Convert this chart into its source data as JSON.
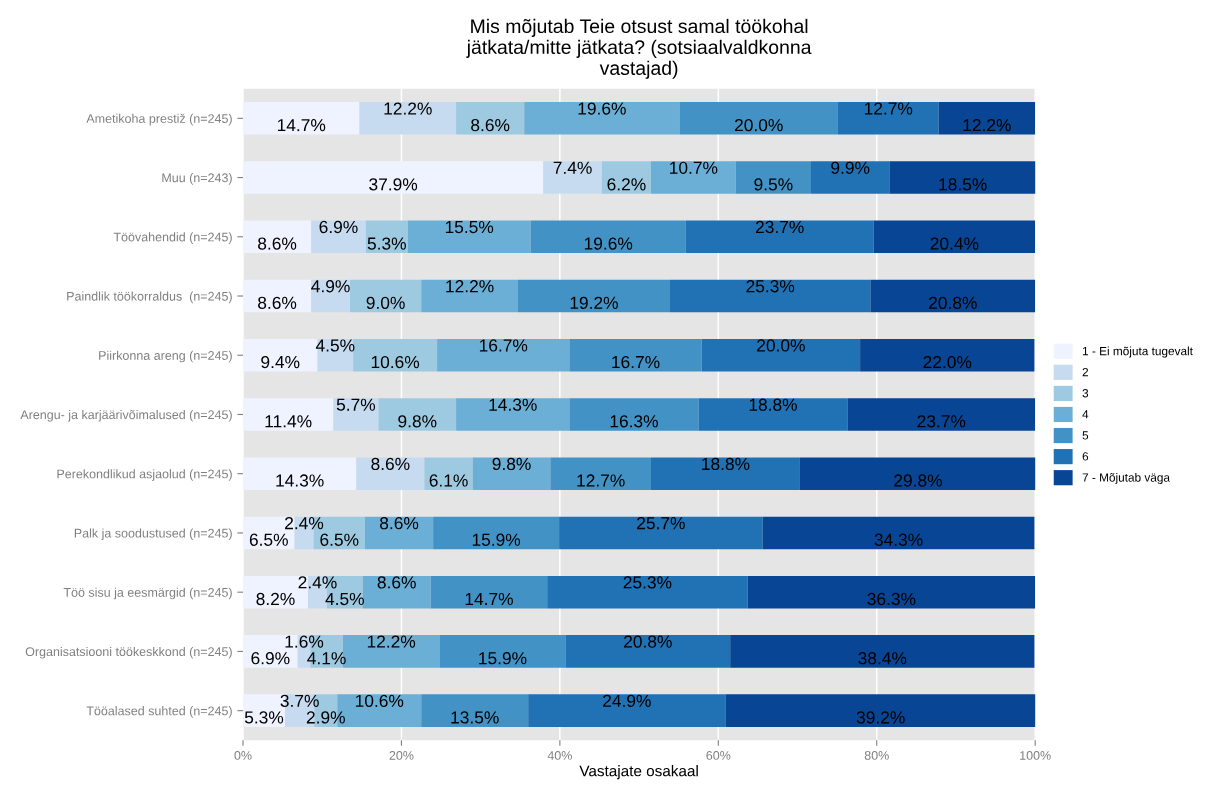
{
  "chart_data": {
    "type": "bar",
    "orientation": "horizontal",
    "stacked": true,
    "title": "Mis mõjutab Teie otsust samal töökohal\njätkata/mitte jätkata? (sotsiaalvaldkonna\nvastajad)",
    "xlabel": "Vastajate osakaal",
    "categories": [
      "Ametikoha prestiž (n=245)",
      "Muu (n=243)",
      "Töövahendid (n=245)",
      "Paindlik töökorraldus  (n=245)",
      "Piirkonna areng (n=245)",
      "Arengu- ja karjäärivõimalused (n=245)",
      "Perekondlikud asjaolud (n=245)",
      "Palk ja soodustused (n=245)",
      "Töö sisu ja eesmärgid (n=245)",
      "Organisatsiooni töökeskkond (n=245)",
      "Tööalased suhted (n=245)"
    ],
    "series": [
      {
        "name": "1 - Ei mõjuta tugevalt",
        "color": "#eff3ff",
        "values": [
          14.7,
          37.9,
          8.6,
          8.6,
          9.4,
          11.4,
          14.3,
          6.5,
          8.2,
          6.9,
          5.3
        ],
        "value_labels": [
          "14.7%",
          "37.9%",
          "8.6%",
          "8.6%",
          "9.4%",
          "11.4%",
          "14.3%",
          "6.5%",
          "8.2%",
          "6.9%",
          "5.3%"
        ]
      },
      {
        "name": "2",
        "color": "#c6dbef",
        "values": [
          12.2,
          7.4,
          6.9,
          4.9,
          4.5,
          5.7,
          8.6,
          2.4,
          2.4,
          1.6,
          3.7
        ],
        "value_labels": [
          "12.2%",
          "7.4%",
          "6.9%",
          "4.9%",
          "4.5%",
          "5.7%",
          "8.6%",
          "2.4%",
          "2.4%",
          "1.6%",
          "3.7%"
        ]
      },
      {
        "name": "3",
        "color": "#9ecae1",
        "values": [
          8.6,
          6.2,
          5.3,
          9.0,
          10.6,
          9.8,
          6.1,
          6.5,
          4.5,
          4.1,
          2.9
        ],
        "value_labels": [
          "8.6%",
          "6.2%",
          "5.3%",
          "9.0%",
          "10.6%",
          "9.8%",
          "6.1%",
          "6.5%",
          "4.5%",
          "4.1%",
          "2.9%"
        ]
      },
      {
        "name": "4",
        "color": "#6baed6",
        "values": [
          19.6,
          10.7,
          15.5,
          12.2,
          16.7,
          14.3,
          9.8,
          8.6,
          8.6,
          12.2,
          10.6
        ],
        "value_labels": [
          "19.6%",
          "10.7%",
          "15.5%",
          "12.2%",
          "16.7%",
          "14.3%",
          "9.8%",
          "8.6%",
          "8.6%",
          "12.2%",
          "10.6%"
        ]
      },
      {
        "name": "5",
        "color": "#4292c6",
        "values": [
          20.0,
          9.5,
          19.6,
          19.2,
          16.7,
          16.3,
          12.7,
          15.9,
          14.7,
          15.9,
          13.5
        ],
        "value_labels": [
          "20.0%",
          "9.5%",
          "19.6%",
          "19.2%",
          "16.7%",
          "16.3%",
          "12.7%",
          "15.9%",
          "14.7%",
          "15.9%",
          "13.5%"
        ]
      },
      {
        "name": "6",
        "color": "#2171b5",
        "values": [
          12.7,
          9.9,
          23.7,
          25.3,
          20.0,
          18.8,
          18.8,
          25.7,
          25.3,
          20.8,
          24.9
        ],
        "value_labels": [
          "12.7%",
          "9.9%",
          "23.7%",
          "25.3%",
          "20.0%",
          "18.8%",
          "18.8%",
          "25.7%",
          "25.3%",
          "20.8%",
          "24.9%"
        ]
      },
      {
        "name": "7 - Mõjutab väga",
        "color": "#084594",
        "values": [
          12.2,
          18.5,
          20.4,
          20.8,
          22.0,
          23.7,
          29.8,
          34.3,
          36.3,
          38.4,
          39.2
        ],
        "value_labels": [
          "12.2%",
          "18.5%",
          "20.4%",
          "20.8%",
          "22.0%",
          "23.7%",
          "29.8%",
          "34.3%",
          "36.3%",
          "38.4%",
          "39.2%"
        ]
      }
    ],
    "xlim": [
      0,
      100
    ],
    "xticks": [
      {
        "value": 0,
        "label": "0%"
      },
      {
        "value": 20,
        "label": "20%"
      },
      {
        "value": 40,
        "label": "40%"
      },
      {
        "value": 60,
        "label": "60%"
      },
      {
        "value": 80,
        "label": "80%"
      },
      {
        "value": 100,
        "label": "100%"
      }
    ],
    "grid": "x",
    "legend": "right"
  }
}
